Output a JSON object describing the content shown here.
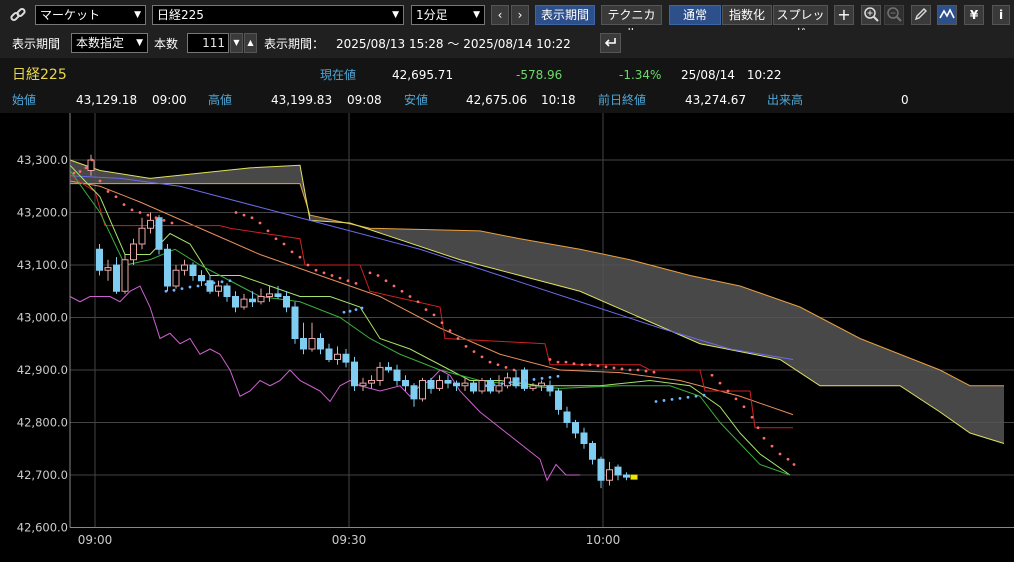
{
  "toolbar": {
    "link_icon": "link-icon",
    "market_select": "マーケット",
    "symbol_select": "日経225",
    "interval_select": "1分足",
    "prev_label": "‹",
    "next_label": "›",
    "display_period_btn": "表示期間",
    "technical_btn": "テクニカル",
    "normal_btn": "通常",
    "index_btn": "指数化",
    "spread_btn": "スプレッド",
    "icons": [
      "plus-icon",
      "zoom-in-icon",
      "zoom-out-icon",
      "pencil-icon",
      "chart-tool-icon",
      "yen-icon",
      "info-icon"
    ]
  },
  "period_bar": {
    "label": "表示期間",
    "mode_select": "本数指定",
    "count_label": "本数",
    "count_value": "111",
    "range_label": "表示期間：",
    "range_value": "2025/08/13 15:28 ～ 2025/08/14 10:22",
    "reset_icon": "return-icon"
  },
  "quote": {
    "name": "日経225",
    "current_label": "現在値",
    "current_value": "42,695.71",
    "change": "-578.96",
    "change_pct": "-1.34%",
    "datetime": "25/08/14　10:22",
    "open_label": "始値",
    "open_value": "43,129.18",
    "open_time": "09:00",
    "high_label": "高値",
    "high_value": "43,199.83",
    "high_time": "09:08",
    "low_label": "安値",
    "low_value": "42,675.06",
    "low_time": "10:18",
    "prev_close_label": "前日終値",
    "prev_close_value": "43,274.67",
    "volume_label": "出来高",
    "volume_value": "0"
  },
  "colors": {
    "up_candle": "#e8a6a6",
    "down_candle": "#7fcdf0",
    "ma_short": "#a6e36a",
    "ma_mid": "#e88f5a",
    "ma_long": "#6a6ae8",
    "kijun": "#d02020",
    "cloud": "#555555",
    "span_a": "#e8a040",
    "span_b": "#e0e060",
    "chikou": "#d060d0",
    "psar": "#6fb8ff",
    "psar_up": "#ff6a6a",
    "current_marker": "#f2e600"
  },
  "chart_data": {
    "type": "candlestick",
    "ylim": [
      42600,
      43300
    ],
    "yticks": [
      "43,300.0",
      "43,200.0",
      "43,100.0",
      "43,000.0",
      "42,900.0",
      "42,800.0",
      "42,700.0",
      "42,600.0"
    ],
    "xticks": [
      "09:00",
      "09:30",
      "10:00"
    ],
    "candles": [
      {
        "o": 43280,
        "c": 43300,
        "h": 43310,
        "l": 43270
      },
      {
        "o": 43130,
        "c": 43090,
        "h": 43140,
        "l": 43080
      },
      {
        "o": 43090,
        "c": 43095,
        "h": 43110,
        "l": 43070
      },
      {
        "o": 43100,
        "c": 43050,
        "h": 43115,
        "l": 43045
      },
      {
        "o": 43050,
        "c": 43110,
        "h": 43120,
        "l": 43045
      },
      {
        "o": 43110,
        "c": 43140,
        "h": 43150,
        "l": 43100
      },
      {
        "o": 43140,
        "c": 43170,
        "h": 43190,
        "l": 43130
      },
      {
        "o": 43170,
        "c": 43185,
        "h": 43200,
        "l": 43160
      },
      {
        "o": 43190,
        "c": 43130,
        "h": 43195,
        "l": 43120
      },
      {
        "o": 43130,
        "c": 43060,
        "h": 43140,
        "l": 43050
      },
      {
        "o": 43060,
        "c": 43090,
        "h": 43100,
        "l": 43055
      },
      {
        "o": 43090,
        "c": 43100,
        "h": 43110,
        "l": 43080
      },
      {
        "o": 43100,
        "c": 43080,
        "h": 43105,
        "l": 43070
      },
      {
        "o": 43080,
        "c": 43070,
        "h": 43090,
        "l": 43060
      },
      {
        "o": 43070,
        "c": 43050,
        "h": 43080,
        "l": 43045
      },
      {
        "o": 43050,
        "c": 43060,
        "h": 43070,
        "l": 43040
      },
      {
        "o": 43060,
        "c": 43040,
        "h": 43065,
        "l": 43030
      },
      {
        "o": 43040,
        "c": 43020,
        "h": 43050,
        "l": 43010
      },
      {
        "o": 43020,
        "c": 43035,
        "h": 43045,
        "l": 43015
      },
      {
        "o": 43035,
        "c": 43030,
        "h": 43050,
        "l": 43020
      },
      {
        "o": 43030,
        "c": 43040,
        "h": 43055,
        "l": 43025
      },
      {
        "o": 43040,
        "c": 43045,
        "h": 43060,
        "l": 43030
      },
      {
        "o": 43045,
        "c": 43040,
        "h": 43060,
        "l": 43035
      },
      {
        "o": 43040,
        "c": 43020,
        "h": 43050,
        "l": 43010
      },
      {
        "o": 43020,
        "c": 42960,
        "h": 43030,
        "l": 42950
      },
      {
        "o": 42960,
        "c": 42940,
        "h": 42990,
        "l": 42930
      },
      {
        "o": 42940,
        "c": 42960,
        "h": 42990,
        "l": 42935
      },
      {
        "o": 42960,
        "c": 42940,
        "h": 42970,
        "l": 42930
      },
      {
        "o": 42940,
        "c": 42920,
        "h": 42950,
        "l": 42915
      },
      {
        "o": 42920,
        "c": 42930,
        "h": 42945,
        "l": 42910
      },
      {
        "o": 42930,
        "c": 42915,
        "h": 42940,
        "l": 42905
      },
      {
        "o": 42915,
        "c": 42870,
        "h": 42925,
        "l": 42860
      },
      {
        "o": 42870,
        "c": 42875,
        "h": 42885,
        "l": 42860
      },
      {
        "o": 42875,
        "c": 42880,
        "h": 42890,
        "l": 42865
      },
      {
        "o": 42880,
        "c": 42905,
        "h": 42915,
        "l": 42870
      },
      {
        "o": 42905,
        "c": 42900,
        "h": 42915,
        "l": 42895
      },
      {
        "o": 42900,
        "c": 42880,
        "h": 42910,
        "l": 42870
      },
      {
        "o": 42880,
        "c": 42870,
        "h": 42890,
        "l": 42860
      },
      {
        "o": 42870,
        "c": 42845,
        "h": 42875,
        "l": 42830
      },
      {
        "o": 42845,
        "c": 42880,
        "h": 42885,
        "l": 42840
      },
      {
        "o": 42880,
        "c": 42865,
        "h": 42885,
        "l": 42855
      },
      {
        "o": 42865,
        "c": 42880,
        "h": 42890,
        "l": 42860
      },
      {
        "o": 42880,
        "c": 42875,
        "h": 42890,
        "l": 42865
      },
      {
        "o": 42875,
        "c": 42870,
        "h": 42880,
        "l": 42860
      },
      {
        "o": 42870,
        "c": 42875,
        "h": 42885,
        "l": 42860
      },
      {
        "o": 42875,
        "c": 42860,
        "h": 42880,
        "l": 42855
      },
      {
        "o": 42860,
        "c": 42880,
        "h": 42885,
        "l": 42855
      },
      {
        "o": 42880,
        "c": 42860,
        "h": 42885,
        "l": 42855
      },
      {
        "o": 42860,
        "c": 42870,
        "h": 42890,
        "l": 42855
      },
      {
        "o": 42870,
        "c": 42885,
        "h": 42895,
        "l": 42865
      },
      {
        "o": 42885,
        "c": 42870,
        "h": 42900,
        "l": 42865
      },
      {
        "o": 42900,
        "c": 42865,
        "h": 42905,
        "l": 42860
      },
      {
        "o": 42865,
        "c": 42870,
        "h": 42875,
        "l": 42860
      },
      {
        "o": 42870,
        "c": 42875,
        "h": 42880,
        "l": 42860
      },
      {
        "o": 42870,
        "c": 42860,
        "h": 42880,
        "l": 42850
      },
      {
        "o": 42860,
        "c": 42825,
        "h": 42865,
        "l": 42815
      },
      {
        "o": 42820,
        "c": 42800,
        "h": 42830,
        "l": 42790
      },
      {
        "o": 42800,
        "c": 42780,
        "h": 42805,
        "l": 42770
      },
      {
        "o": 42780,
        "c": 42760,
        "h": 42790,
        "l": 42750
      },
      {
        "o": 42760,
        "c": 42730,
        "h": 42765,
        "l": 42720
      },
      {
        "o": 42730,
        "c": 42690,
        "h": 42735,
        "l": 42675
      },
      {
        "o": 42690,
        "c": 42710,
        "h": 42725,
        "l": 42680
      },
      {
        "o": 42715,
        "c": 42700,
        "h": 42720,
        "l": 42690
      },
      {
        "o": 42700,
        "c": 42696,
        "h": 42705,
        "l": 42690
      }
    ]
  }
}
